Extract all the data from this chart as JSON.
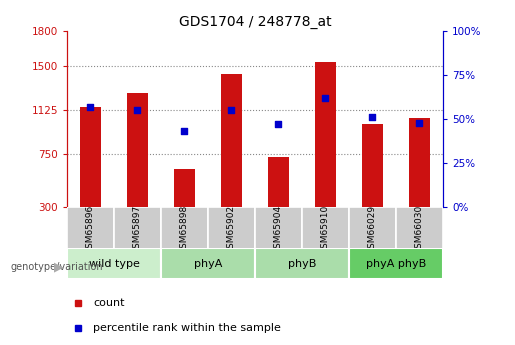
{
  "title": "GDS1704 / 248778_at",
  "samples": [
    "GSM65896",
    "GSM65897",
    "GSM65898",
    "GSM65902",
    "GSM65904",
    "GSM65910",
    "GSM66029",
    "GSM66030"
  ],
  "counts": [
    1150,
    1270,
    620,
    1430,
    730,
    1540,
    1010,
    1060
  ],
  "percentile_ranks": [
    57,
    55,
    43,
    55,
    47,
    62,
    51,
    48
  ],
  "groups": [
    {
      "label": "wild type",
      "start": 0,
      "end": 2,
      "color": "#cceecc"
    },
    {
      "label": "phyA",
      "start": 2,
      "end": 4,
      "color": "#aaddaa"
    },
    {
      "label": "phyB",
      "start": 4,
      "end": 6,
      "color": "#aaddaa"
    },
    {
      "label": "phyA phyB",
      "start": 6,
      "end": 8,
      "color": "#66cc66"
    }
  ],
  "ylim_left": [
    300,
    1800
  ],
  "ylim_right": [
    0,
    100
  ],
  "yticks_left": [
    300,
    750,
    1125,
    1500,
    1800
  ],
  "yticks_right": [
    0,
    25,
    50,
    75,
    100
  ],
  "bar_color": "#cc1111",
  "dot_color": "#0000cc",
  "left_axis_color": "#cc1111",
  "right_axis_color": "#0000cc",
  "grid_color": "#888888",
  "bg_xticklabels": "#cccccc",
  "bar_width": 0.45
}
